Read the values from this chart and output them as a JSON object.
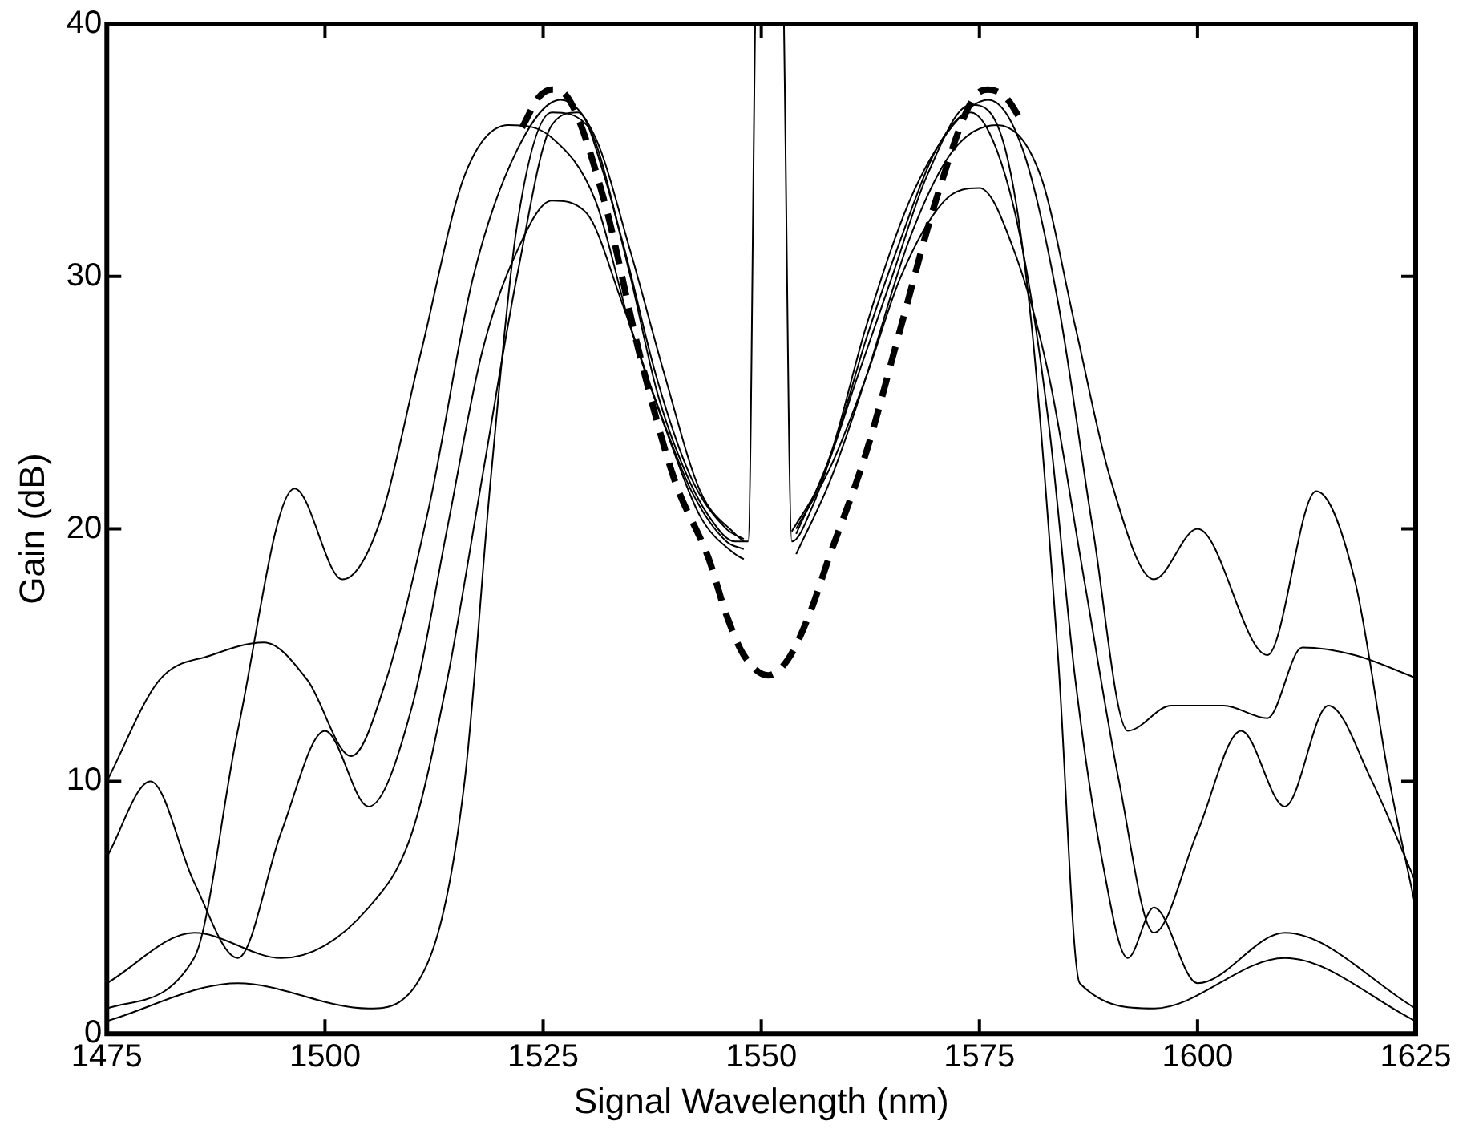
{
  "chart_data": {
    "type": "line",
    "xlabel": "Signal Wavelength (nm)",
    "ylabel": "Gain (dB)",
    "xlim": [
      1475,
      1625
    ],
    "xticks": [
      1475,
      1500,
      1525,
      1550,
      1575,
      1600,
      1625
    ],
    "ylim": [
      0,
      40
    ],
    "yticks": [
      0,
      10,
      20,
      30,
      40
    ],
    "marker": "none",
    "line_style": "solid",
    "series": [
      {
        "color": "#000000",
        "x": [
          1475,
          1485,
          1495,
          1505,
          1510,
          1514,
          1518,
          1522,
          1526,
          1529,
          1532,
          1535,
          1538,
          1541,
          1544,
          1547,
          1548.5,
          1549.3,
          1551,
          1552.6,
          1553.5,
          1556,
          1559,
          1562,
          1566,
          1570,
          1574,
          1577,
          1580,
          1583,
          1586,
          1589,
          1592,
          1595,
          1600,
          1610,
          1625
        ],
        "values": [
          2,
          4,
          3,
          5,
          8,
          14,
          22,
          30,
          36,
          36.5,
          34,
          30,
          25.5,
          22.5,
          20.5,
          19.5,
          19.5,
          40,
          null,
          40,
          19.5,
          21,
          24,
          27.5,
          31.5,
          35,
          36.5,
          35,
          31,
          24,
          14,
          7,
          3,
          5,
          2,
          4,
          1
        ]
      },
      {
        "color": "#000000",
        "x": [
          1475,
          1480,
          1485,
          1490,
          1495,
          1500,
          1505,
          1510,
          1514,
          1518,
          1522,
          1526,
          1530,
          1534,
          1538,
          1542,
          1546,
          1548,
          1551,
          1554,
          1558,
          1562,
          1566,
          1571,
          1575,
          1579,
          1583,
          1587,
          1591,
          1595,
          1600,
          1605,
          1610,
          1615,
          1620,
          1625
        ],
        "values": [
          7,
          10,
          6,
          3,
          8,
          12,
          9,
          13,
          20,
          27,
          31,
          33,
          32.5,
          29,
          25,
          21.5,
          19.5,
          19.2,
          null,
          20,
          22.5,
          26,
          30,
          33,
          33.5,
          31,
          26,
          18,
          10,
          4,
          8,
          12,
          9,
          13,
          10,
          6
        ]
      },
      {
        "color": "#000000",
        "x": [
          1475,
          1481,
          1487,
          1493,
          1498,
          1503,
          1507,
          1512,
          1517,
          1522,
          1527,
          1531,
          1535,
          1539,
          1543,
          1547,
          1548,
          1551,
          1554,
          1558,
          1562,
          1567,
          1572,
          1576,
          1580,
          1584,
          1588,
          1592,
          1597,
          1603,
          1608,
          1612,
          1618,
          1625
        ],
        "values": [
          10,
          14,
          15,
          15.5,
          14,
          11,
          14,
          21,
          30,
          35,
          37,
          35.5,
          31,
          26,
          21.5,
          19.8,
          19.5,
          null,
          19.8,
          23,
          28,
          33,
          36,
          37,
          35,
          29,
          20,
          12,
          13,
          13,
          12.5,
          15.3,
          15,
          14.1
        ]
      },
      {
        "color": "#000000",
        "x": [
          1475,
          1485,
          1490,
          1496.5,
          1502,
          1506,
          1511,
          1516,
          1521,
          1526,
          1531,
          1535,
          1539,
          1543,
          1547,
          1548,
          1551,
          1554,
          1558,
          1562,
          1567,
          1572,
          1577,
          1582,
          1586,
          1590,
          1595,
          1600,
          1608,
          1613.6,
          1618,
          1622,
          1625
        ],
        "values": [
          1,
          3,
          12,
          21.6,
          18,
          20,
          27,
          34,
          36,
          35.5,
          33,
          28,
          24,
          20.5,
          19,
          18.8,
          null,
          19,
          22,
          26,
          31.5,
          35,
          36,
          34,
          28,
          22,
          18,
          20,
          15,
          21.5,
          18,
          10,
          5
        ]
      },
      {
        "color": "#000000",
        "x": [
          1475,
          1490,
          1505,
          1512,
          1516,
          1519,
          1522,
          1526,
          1530,
          1534,
          1538,
          1542,
          1546,
          1548,
          1551,
          1553.5,
          1557,
          1561,
          1565,
          1569,
          1574,
          1578,
          1581,
          1584,
          1586.5,
          1595,
          1610,
          1625
        ],
        "values": [
          0.5,
          2,
          1,
          3,
          10,
          22,
          32,
          36.5,
          36,
          31.5,
          26,
          22,
          20,
          19.6,
          null,
          19.9,
          22,
          26,
          30,
          34,
          36.8,
          35,
          28,
          15,
          2,
          1,
          3,
          0.5
        ]
      },
      {
        "color": "#000000",
        "line_style": "dashed",
        "x": [
          1522.6,
          1524.5,
          1526,
          1527.8,
          1532,
          1536,
          1540,
          1544,
          1546,
          1548,
          1550.8,
          1553,
          1555.5,
          1557.8,
          1562,
          1566,
          1570,
          1574.2,
          1576,
          1578,
          1580.1
        ],
        "values": [
          35.9,
          37.1,
          37.4,
          37.1,
          33,
          27,
          22,
          18.8,
          16.6,
          15,
          14.2,
          14.8,
          16.6,
          18.9,
          23,
          28,
          33,
          37,
          37.4,
          37.1,
          36
        ]
      }
    ]
  }
}
